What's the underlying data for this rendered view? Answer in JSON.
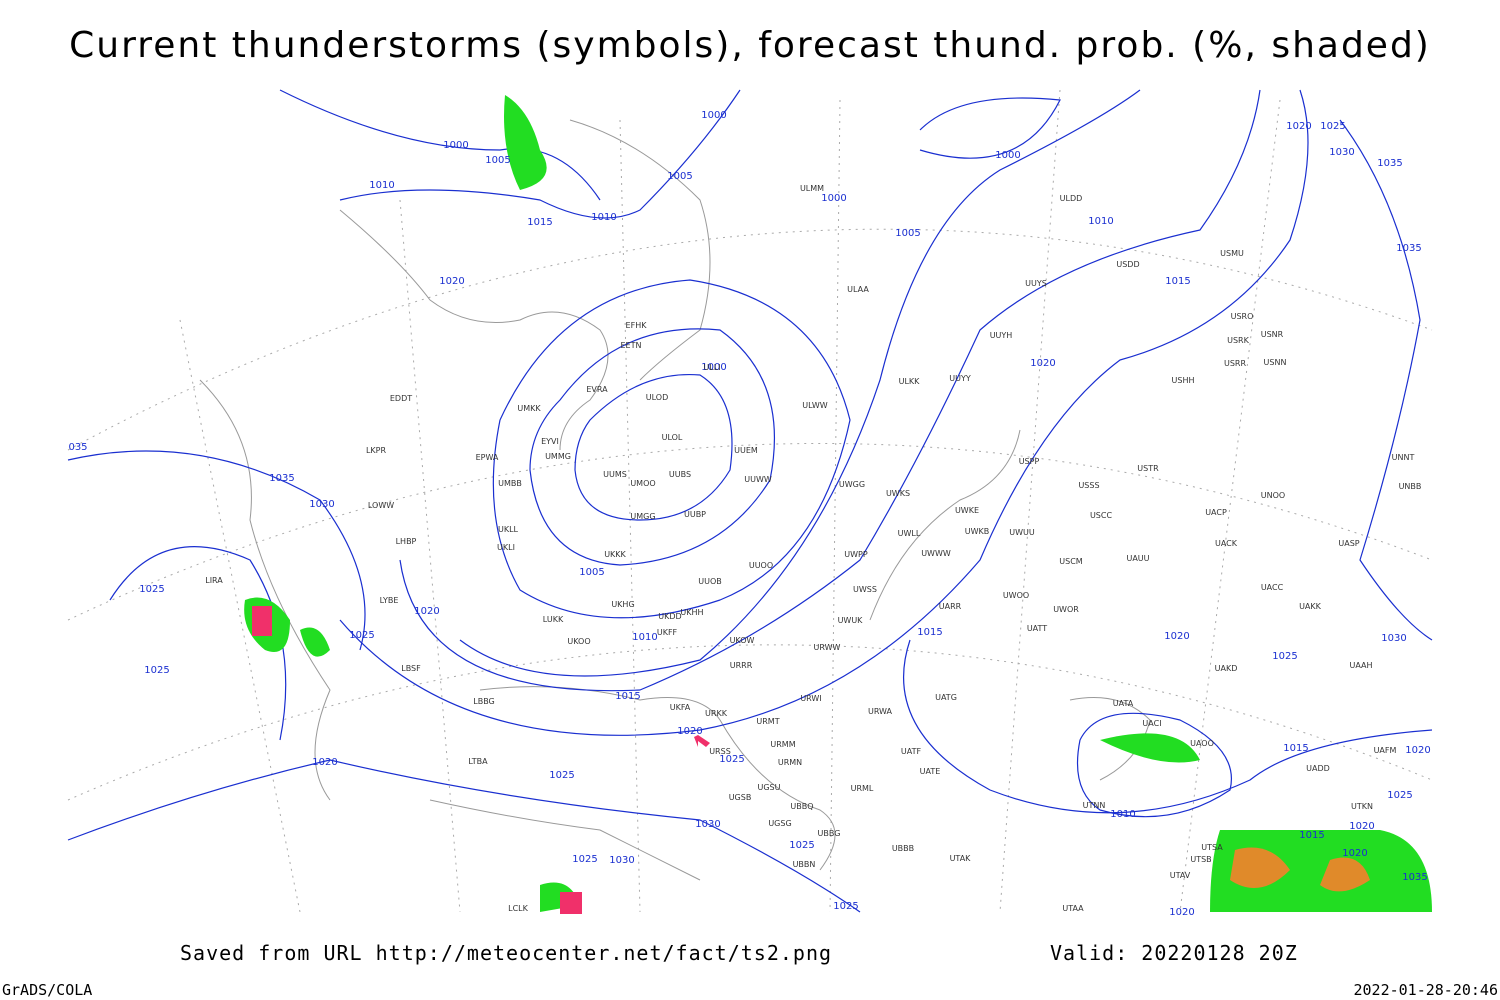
{
  "header": {
    "title": "Current thunderstorms (symbols), forecast thund. prob. (%, shaded)"
  },
  "map": {
    "isobar_labels": [
      "1000",
      "1005",
      "1010",
      "1015",
      "1010",
      "1005",
      "1000",
      "1000",
      "1000",
      "1005",
      "1010",
      "1015",
      "1020",
      "1025",
      "1030",
      "1035",
      "1035",
      "1020",
      "1000",
      "035",
      "1035",
      "1030",
      "1025",
      "1020",
      "1025",
      "1025",
      "1005",
      "1010",
      "1015",
      "1020",
      "1025",
      "1025",
      "1020",
      "1030",
      "1025",
      "1030",
      "1025",
      "1025",
      "1015",
      "1020",
      "1020",
      "1025",
      "1030",
      "1015",
      "1020",
      "1025",
      "1020",
      "1015",
      "1020",
      "1035",
      "1010",
      "1020"
    ],
    "stations": [
      "ULMM",
      "ULDD",
      "USMU",
      "USDD",
      "UUYS",
      "ULAA",
      "USRO",
      "USNR",
      "USRK",
      "UUYH",
      "EFHK",
      "EETN",
      "USRR",
      "USNN",
      "ULLI",
      "UUYY",
      "ULKK",
      "USHH",
      "EVRA",
      "ULOD",
      "ULWW",
      "EDDT",
      "UMKK",
      "EYVI",
      "ULOL",
      "UUEM",
      "LKPR",
      "EPWA",
      "UMMG",
      "USPP",
      "USTR",
      "UNNT",
      "UUMS",
      "UMOO",
      "UUBS",
      "UUWW",
      "UWGG",
      "UWKS",
      "USSS",
      "UNOO",
      "UNBB",
      "UMBB",
      "LOWW",
      "UWKE",
      "UACP",
      "UMGG",
      "UUBP",
      "USCC",
      "UKLL",
      "UWKB",
      "UWUU",
      "UWLL",
      "UACK",
      "UASP",
      "LHBP",
      "UKLI",
      "UKKK",
      "UWPP",
      "UWWW",
      "USCM",
      "UAUU",
      "UUOO",
      "LIRA",
      "UUOB",
      "UACC",
      "UWSS",
      "LYBE",
      "UKHG",
      "UARR",
      "UWOO",
      "UWOR",
      "UAKK",
      "UKDD",
      "UKHH",
      "LUKK",
      "UWUK",
      "UATT",
      "UKOO",
      "UKOW",
      "UKFF",
      "URWW",
      "LBSF",
      "URRR",
      "UAKD",
      "UAAH",
      "LBBG",
      "UKFA",
      "URWI",
      "UATG",
      "UATA",
      "URKK",
      "URMT",
      "URWA",
      "UACI",
      "UATF",
      "URSS",
      "URMM",
      "UAOO",
      "LTBA",
      "URMN",
      "UATE",
      "UADD",
      "UAFM",
      "UGSU",
      "UBBQ",
      "URML",
      "UTNN",
      "UTKN",
      "UGSB",
      "UGSG",
      "UBBG",
      "UBBB",
      "UTSA",
      "UTSB",
      "UTAK",
      "UBBN",
      "UTAV",
      "LCLK",
      "UTAA"
    ]
  },
  "footer": {
    "source": "Saved from URL http://meteocenter.net/fact/ts2.png",
    "valid": "Valid: 20220128 20Z",
    "software": "GrADS/COLA",
    "timestamp": "2022-01-28-20:46"
  }
}
